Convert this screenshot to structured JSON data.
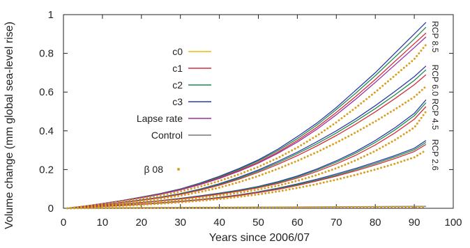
{
  "chart_data": {
    "type": "line",
    "xlabel": "Years since 2006/07",
    "ylabel": "Volume change (mm global sea-level rise)",
    "xlim": [
      0,
      100
    ],
    "ylim": [
      0,
      1
    ],
    "x_ticks": [
      0,
      10,
      20,
      30,
      40,
      50,
      60,
      70,
      80,
      90,
      100
    ],
    "y_ticks": [
      0,
      0.2,
      0.4,
      0.6,
      0.8,
      1
    ],
    "x_tick_labels": [
      "0",
      "10",
      "20",
      "30",
      "40",
      "50",
      "60",
      "70",
      "80",
      "90",
      "100"
    ],
    "y_tick_labels": [
      "0",
      "0.2",
      "0.4",
      "0.6",
      "0.8",
      "1"
    ],
    "grid": false,
    "legend_position": "upper-left",
    "legend": [
      {
        "label": "c0",
        "color": "#f2b705",
        "style": "line"
      },
      {
        "label": "c1",
        "color": "#d62b3a",
        "style": "line"
      },
      {
        "label": "c2",
        "color": "#1d8a4a",
        "style": "line"
      },
      {
        "label": "c3",
        "color": "#2a3aa8",
        "style": "line"
      },
      {
        "label": "Lapse rate",
        "color": "#9b2fa0",
        "style": "line"
      },
      {
        "label": "Control",
        "color": "#777777",
        "style": "line"
      },
      {
        "label": "β 08",
        "color": "#d9a020",
        "style": "dots"
      }
    ],
    "scenarios": [
      {
        "label": "RCP 8.5",
        "x": [
          1,
          5,
          10,
          15,
          20,
          25,
          30,
          35,
          40,
          45,
          50,
          55,
          60,
          65,
          70,
          75,
          80,
          85,
          90,
          93
        ],
        "series": [
          {
            "name": "c3",
            "values": [
              0,
              0.01,
              0.025,
              0.04,
              0.058,
              0.077,
              0.1,
              0.13,
              0.165,
              0.205,
              0.25,
              0.305,
              0.37,
              0.44,
              0.52,
              0.61,
              0.7,
              0.8,
              0.9,
              0.96
            ]
          },
          {
            "name": "c2",
            "values": [
              0,
              0.01,
              0.024,
              0.039,
              0.056,
              0.075,
              0.098,
              0.127,
              0.161,
              0.2,
              0.245,
              0.298,
              0.36,
              0.43,
              0.51,
              0.595,
              0.685,
              0.78,
              0.875,
              0.935
            ]
          },
          {
            "name": "c1",
            "values": [
              0,
              0.01,
              0.024,
              0.039,
              0.055,
              0.074,
              0.096,
              0.124,
              0.157,
              0.195,
              0.238,
              0.29,
              0.35,
              0.418,
              0.495,
              0.578,
              0.665,
              0.758,
              0.85,
              0.905
            ]
          },
          {
            "name": "Lapse rate",
            "values": [
              0,
              0.01,
              0.023,
              0.038,
              0.054,
              0.073,
              0.095,
              0.122,
              0.154,
              0.191,
              0.233,
              0.284,
              0.342,
              0.408,
              0.483,
              0.564,
              0.65,
              0.74,
              0.83,
              0.885
            ]
          },
          {
            "name": "β 08",
            "values": [
              0,
              0.009,
              0.021,
              0.035,
              0.05,
              0.067,
              0.087,
              0.112,
              0.141,
              0.175,
              0.214,
              0.26,
              0.314,
              0.375,
              0.444,
              0.52,
              0.6,
              0.685,
              0.77,
              0.845
            ]
          }
        ]
      },
      {
        "label": "RCP 6.0",
        "x": [
          1,
          5,
          10,
          15,
          20,
          25,
          30,
          35,
          40,
          45,
          50,
          55,
          60,
          65,
          70,
          75,
          80,
          85,
          90,
          93
        ],
        "series": [
          {
            "name": "c3",
            "values": [
              0,
              0.008,
              0.018,
              0.03,
              0.043,
              0.058,
              0.076,
              0.099,
              0.127,
              0.16,
              0.198,
              0.242,
              0.29,
              0.343,
              0.4,
              0.462,
              0.53,
              0.603,
              0.68,
              0.735
            ]
          },
          {
            "name": "c2",
            "values": [
              0,
              0.008,
              0.018,
              0.029,
              0.042,
              0.057,
              0.074,
              0.096,
              0.123,
              0.155,
              0.192,
              0.235,
              0.282,
              0.333,
              0.389,
              0.45,
              0.515,
              0.585,
              0.66,
              0.715
            ]
          },
          {
            "name": "c1",
            "values": [
              0,
              0.008,
              0.017,
              0.028,
              0.041,
              0.055,
              0.072,
              0.093,
              0.119,
              0.15,
              0.186,
              0.227,
              0.272,
              0.322,
              0.376,
              0.435,
              0.498,
              0.566,
              0.638,
              0.69
            ]
          },
          {
            "name": "β 08",
            "values": [
              0,
              0.007,
              0.015,
              0.025,
              0.037,
              0.05,
              0.065,
              0.084,
              0.107,
              0.135,
              0.167,
              0.204,
              0.245,
              0.29,
              0.339,
              0.392,
              0.449,
              0.51,
              0.575,
              0.63
            ]
          }
        ]
      },
      {
        "label": "RCP 4.5",
        "x": [
          1,
          5,
          10,
          15,
          20,
          25,
          30,
          35,
          40,
          45,
          50,
          55,
          60,
          65,
          70,
          75,
          80,
          85,
          90,
          93
        ],
        "series": [
          {
            "name": "c3",
            "values": [
              0,
              0.006,
              0.013,
              0.021,
              0.03,
              0.04,
              0.051,
              0.064,
              0.078,
              0.094,
              0.113,
              0.137,
              0.167,
              0.203,
              0.245,
              0.293,
              0.35,
              0.415,
              0.49,
              0.56
            ]
          },
          {
            "name": "c2",
            "values": [
              0,
              0.006,
              0.013,
              0.021,
              0.029,
              0.039,
              0.05,
              0.062,
              0.076,
              0.091,
              0.11,
              0.133,
              0.162,
              0.197,
              0.238,
              0.285,
              0.34,
              0.404,
              0.478,
              0.545
            ]
          },
          {
            "name": "c1",
            "values": [
              0,
              0.006,
              0.012,
              0.02,
              0.028,
              0.038,
              0.048,
              0.06,
              0.073,
              0.088,
              0.106,
              0.128,
              0.156,
              0.19,
              0.229,
              0.274,
              0.327,
              0.389,
              0.46,
              0.525
            ]
          },
          {
            "name": "β 08",
            "values": [
              0,
              0.005,
              0.011,
              0.018,
              0.025,
              0.034,
              0.043,
              0.054,
              0.066,
              0.08,
              0.097,
              0.117,
              0.142,
              0.172,
              0.207,
              0.248,
              0.296,
              0.352,
              0.417,
              0.5
            ]
          }
        ]
      },
      {
        "label": "RCP 2.6",
        "x": [
          1,
          5,
          10,
          15,
          20,
          25,
          30,
          35,
          40,
          45,
          50,
          55,
          60,
          65,
          70,
          75,
          80,
          85,
          90,
          93
        ],
        "series": [
          {
            "name": "c3",
            "values": [
              0,
              0.004,
              0.009,
              0.015,
              0.021,
              0.028,
              0.036,
              0.045,
              0.056,
              0.069,
              0.085,
              0.104,
              0.126,
              0.15,
              0.177,
              0.206,
              0.238,
              0.272,
              0.31,
              0.35
            ]
          },
          {
            "name": "c2",
            "values": [
              0,
              0.004,
              0.009,
              0.015,
              0.021,
              0.028,
              0.035,
              0.044,
              0.055,
              0.068,
              0.083,
              0.101,
              0.122,
              0.145,
              0.171,
              0.2,
              0.231,
              0.265,
              0.302,
              0.34
            ]
          },
          {
            "name": "c1",
            "values": [
              0,
              0.004,
              0.009,
              0.014,
              0.02,
              0.027,
              0.034,
              0.043,
              0.053,
              0.066,
              0.081,
              0.098,
              0.118,
              0.141,
              0.166,
              0.194,
              0.224,
              0.257,
              0.293,
              0.33
            ]
          },
          {
            "name": "β 08",
            "values": [
              0,
              0.003,
              0.008,
              0.013,
              0.018,
              0.024,
              0.031,
              0.039,
              0.048,
              0.059,
              0.072,
              0.087,
              0.105,
              0.125,
              0.148,
              0.173,
              0.2,
              0.23,
              0.263,
              0.3
            ]
          }
        ]
      },
      {
        "label": "",
        "x": [
          1,
          10,
          20,
          30,
          40,
          50,
          60,
          70,
          80,
          90,
          93
        ],
        "series": [
          {
            "name": "Control",
            "values": [
              0,
              0.002,
              0.003,
              0.004,
              0.005,
              0.006,
              0.007,
              0.008,
              0.009,
              0.01,
              0.01
            ]
          },
          {
            "name": "β 08",
            "values": [
              0,
              0.001,
              0.002,
              0.003,
              0.004,
              0.004,
              0.005,
              0.006,
              0.006,
              0.007,
              0.007
            ]
          }
        ]
      }
    ]
  }
}
